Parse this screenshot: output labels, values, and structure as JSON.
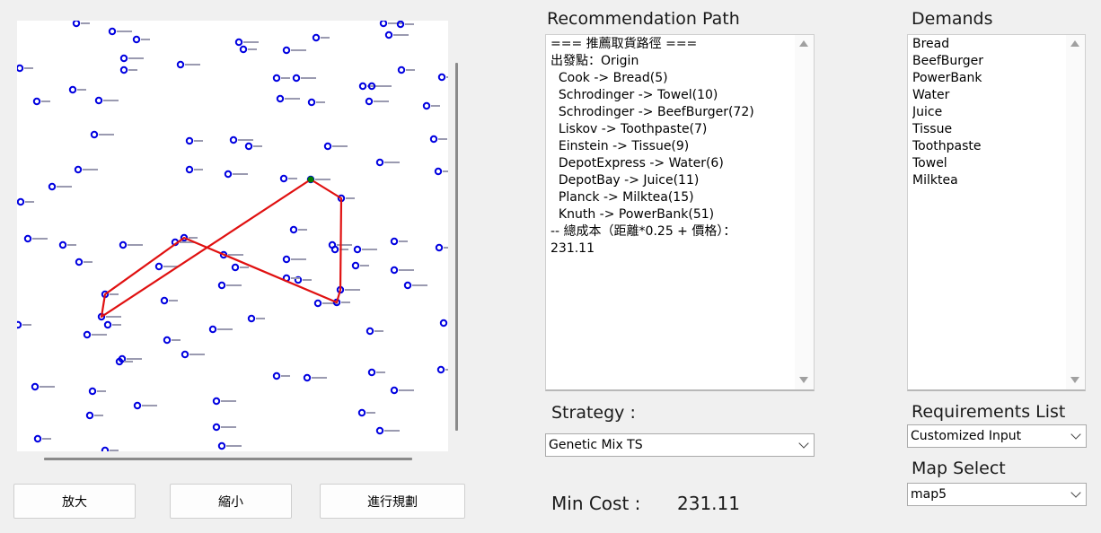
{
  "buttons": {
    "zoom_in": "放大",
    "zoom_out": "縮小",
    "plan": "進行規劃"
  },
  "recommendation": {
    "title": "Recommendation Path",
    "lines": [
      "=== 推薦取貨路徑 ===",
      "出發點：Origin",
      "  Cook -> Bread(5)",
      "  Schrodinger -> Towel(10)",
      "  Schrodinger -> BeefBurger(72)",
      "  Liskov -> Toothpaste(7)",
      "  Einstein -> Tissue(9)",
      "  DepotExpress -> Water(6)",
      "  DepotBay -> Juice(11)",
      "  Planck -> Milktea(15)",
      "  Knuth -> PowerBank(51)",
      "-- 總成本（距離*0.25 + 價格）：",
      "231.11"
    ]
  },
  "demands": {
    "title": "Demands",
    "items": [
      "Bread",
      "BeefBurger",
      "PowerBank",
      "Water",
      "Juice",
      "Tissue",
      "Toothpaste",
      "Towel",
      "Milktea"
    ]
  },
  "strategy": {
    "label": "Strategy :",
    "selected": "Genetic Mix TS"
  },
  "requirements": {
    "label": "Requirements List",
    "selected": "Customized Input"
  },
  "map_select": {
    "label": "Map Select",
    "selected": "map5"
  },
  "min_cost": {
    "label": "Min Cost :",
    "value": "231.11"
  },
  "colors": {
    "node": "#0000e0",
    "origin_node": "#008000",
    "route": "#e01010",
    "background": "#f0f0f0"
  }
}
